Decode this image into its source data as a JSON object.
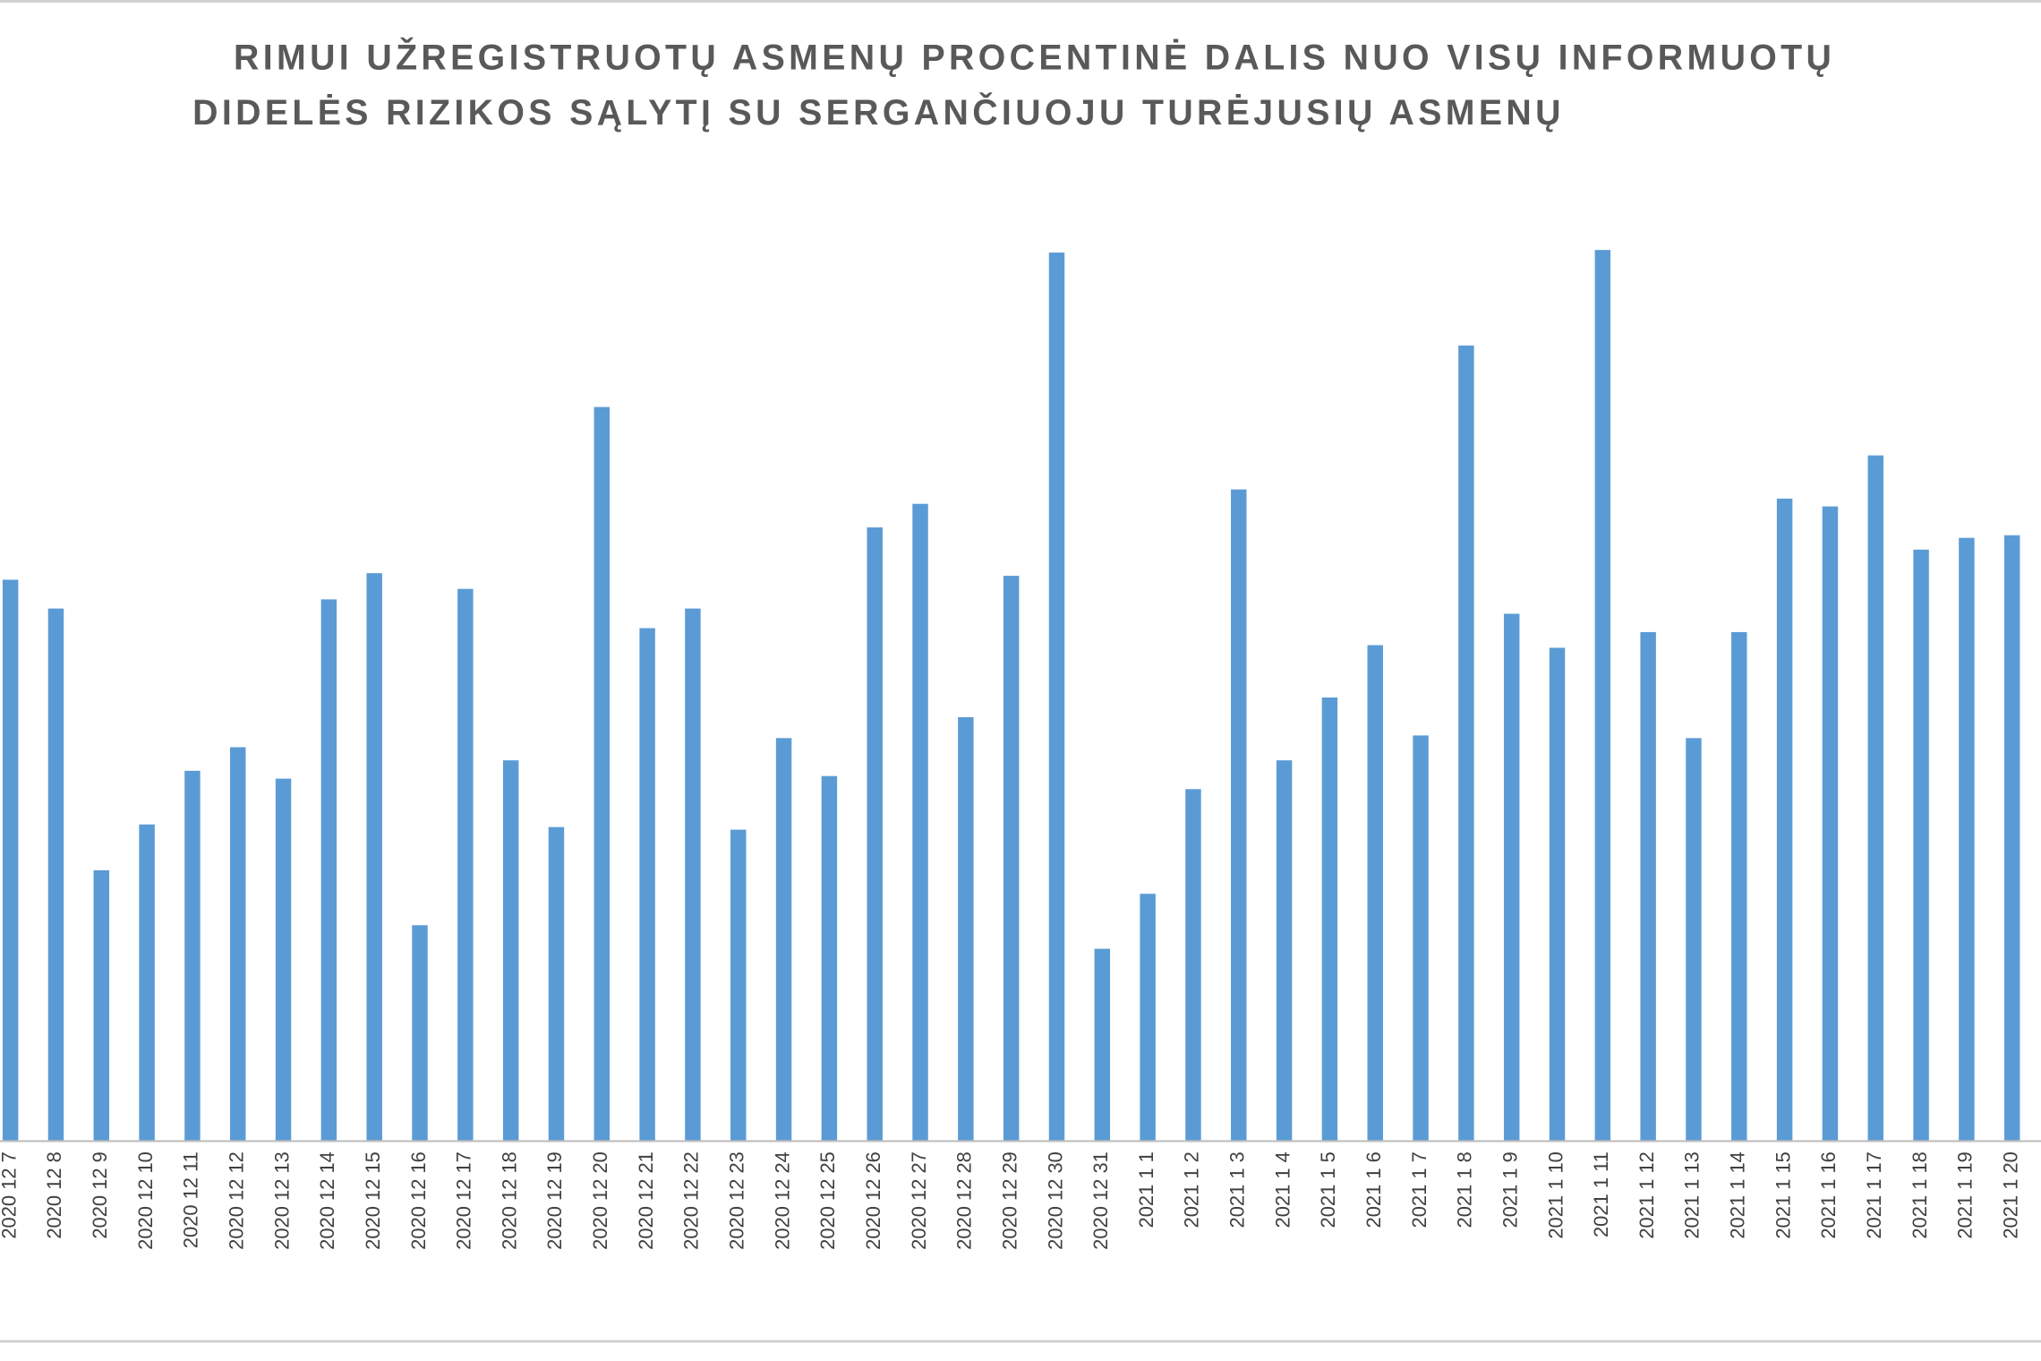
{
  "chart_data": {
    "type": "bar",
    "title": [
      "RIMUI UŽREGISTRUOTŲ ASMENŲ PROCENTINĖ DALIS NUO VISŲ INFORMUOTŲ",
      "DIDELĖS RIZIKOS SĄLYTĮ SU SERGANČIUOJU TURĖJUSIŲ ASMENŲ"
    ],
    "categories": [
      "2020 12 7",
      "2020 12 8",
      "2020 12 9",
      "2020 12 10",
      "2020 12 11",
      "2020 12 12",
      "2020 12 13",
      "2020 12 14",
      "2020 12 15",
      "2020 12 16",
      "2020 12 17",
      "2020 12 18",
      "2020 12 19",
      "2020 12 20",
      "2020 12 21",
      "2020 12 22",
      "2020 12 23",
      "2020 12 24",
      "2020 12 25",
      "2020 12 26",
      "2020 12 27",
      "2020 12 28",
      "2020 12 29",
      "2020 12 30",
      "2020 12 31",
      "2021 1 1",
      "2021 1 2",
      "2021 1 3",
      "2021 1 4",
      "2021 1 5",
      "2021 1 6",
      "2021 1 7",
      "2021 1 8",
      "2021 1 9",
      "2021 1 10",
      "2021 1 11",
      "2021 1 12",
      "2021 1 13",
      "2021 1 14",
      "2021 1 15",
      "2021 1 16",
      "2021 1 17",
      "2021 1 18",
      "2021 1 19",
      "2021 1 20"
    ],
    "values": [
      429,
      407,
      207,
      242,
      283,
      301,
      277,
      414,
      434,
      165,
      422,
      291,
      240,
      561,
      392,
      407,
      238,
      308,
      279,
      469,
      487,
      324,
      432,
      679,
      147,
      189,
      269,
      498,
      291,
      339,
      379,
      310,
      608,
      403,
      377,
      681,
      389,
      308,
      389,
      491,
      485,
      524,
      452,
      461,
      463
    ],
    "color": "#5b9bd5",
    "ylim": [
      0,
      700
    ]
  }
}
